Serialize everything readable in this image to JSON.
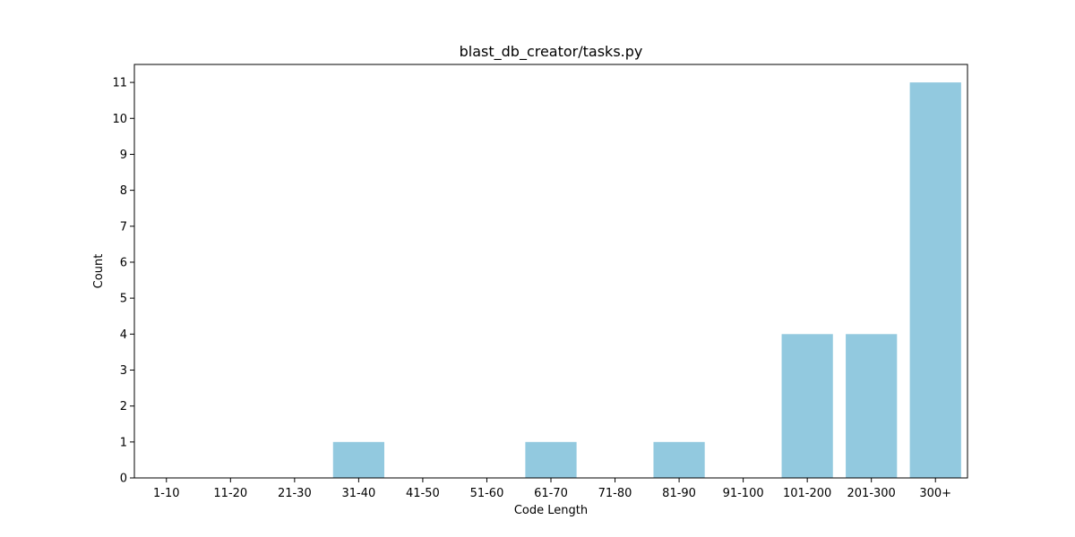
{
  "chart_data": {
    "type": "bar",
    "title": "blast_db_creator/tasks.py",
    "xlabel": "Code Length",
    "ylabel": "Count",
    "categories": [
      "1-10",
      "11-20",
      "21-30",
      "31-40",
      "41-50",
      "51-60",
      "61-70",
      "71-80",
      "81-90",
      "91-100",
      "101-200",
      "201-300",
      "300+"
    ],
    "values": [
      0,
      0,
      0,
      1,
      0,
      0,
      1,
      0,
      1,
      0,
      4,
      4,
      11
    ],
    "ylim": [
      0,
      11.5
    ],
    "yticks": [
      0,
      1,
      2,
      3,
      4,
      5,
      6,
      7,
      8,
      9,
      10,
      11
    ],
    "grid": false,
    "bar_color": "#92c9df"
  }
}
